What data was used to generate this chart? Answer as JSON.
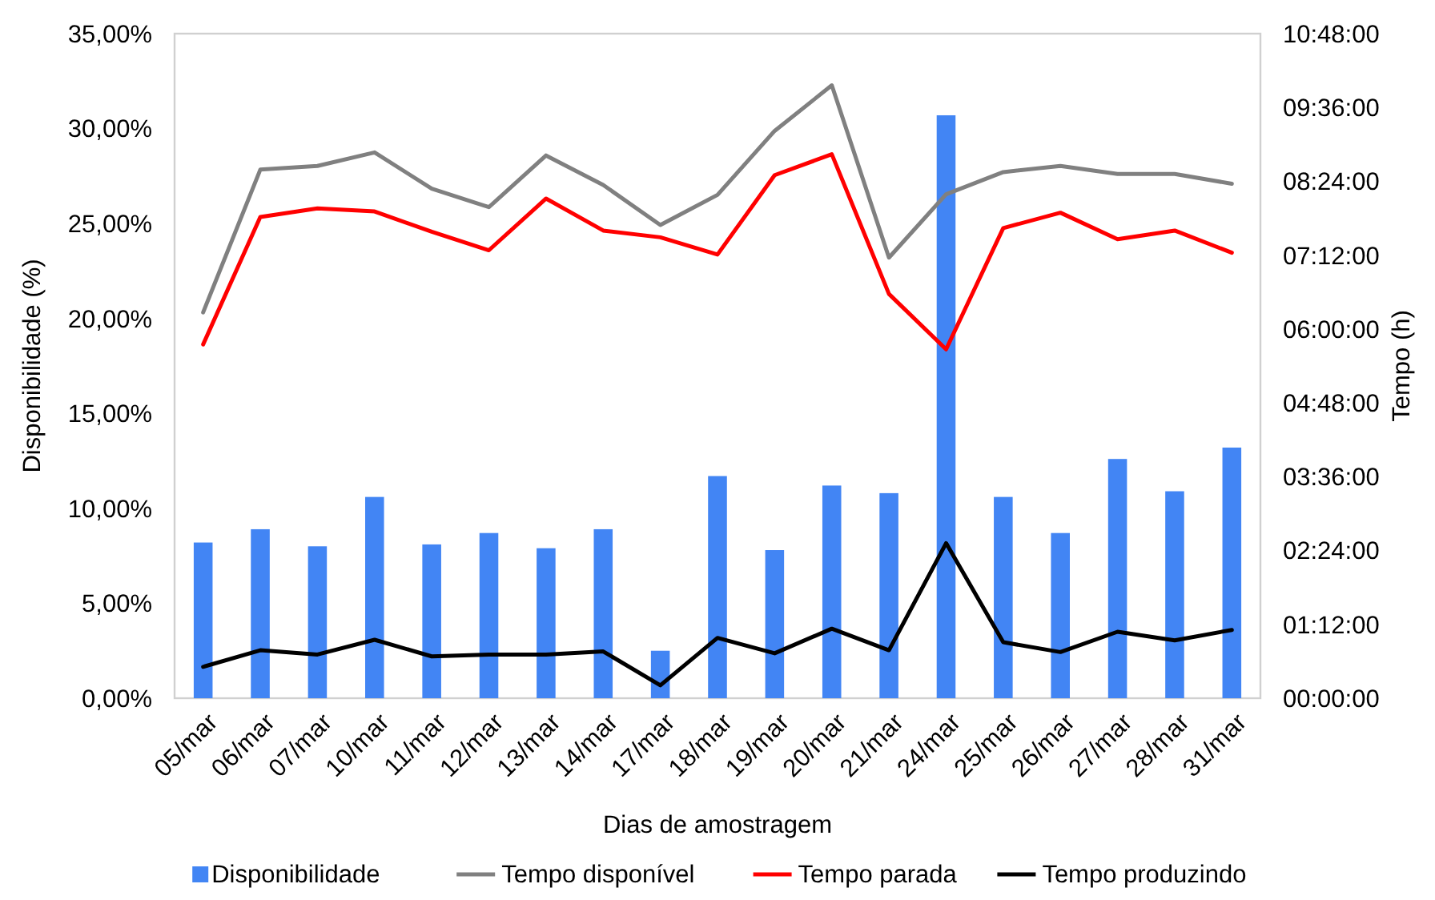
{
  "chart_data": {
    "type": "bar",
    "xlabel": "Dias de amostragem",
    "ylabel": "Disponibilidade (%)",
    "y2label": "Tempo (h)",
    "categories": [
      "05/mar",
      "06/mar",
      "07/mar",
      "10/mar",
      "11/mar",
      "12/mar",
      "13/mar",
      "14/mar",
      "17/mar",
      "18/mar",
      "19/mar",
      "20/mar",
      "21/mar",
      "24/mar",
      "25/mar",
      "26/mar",
      "27/mar",
      "28/mar",
      "31/mar"
    ],
    "series": [
      {
        "name": "Disponibilidade",
        "color": "#4285f4",
        "values": [
          8.2,
          8.9,
          8.0,
          10.6,
          8.1,
          8.7,
          7.9,
          8.9,
          2.5,
          11.7,
          7.8,
          11.2,
          10.8,
          30.7,
          10.6,
          8.7,
          12.6,
          10.9,
          13.2
        ]
      },
      {
        "name": "Tempo disponível",
        "type": "line",
        "axis": "y2",
        "color": "#808080",
        "values": [
          6.27,
          8.59,
          8.65,
          8.87,
          8.28,
          7.98,
          8.82,
          8.34,
          7.69,
          8.18,
          9.22,
          9.96,
          7.16,
          8.19,
          8.55,
          8.65,
          8.52,
          8.52,
          8.36
        ]
      },
      {
        "name": "Tempo parada",
        "type": "line",
        "axis": "y2",
        "color": "#ff0000",
        "values": [
          5.75,
          7.82,
          7.96,
          7.91,
          7.58,
          7.28,
          8.12,
          7.6,
          7.49,
          7.21,
          8.5,
          8.84,
          6.57,
          5.67,
          7.64,
          7.89,
          7.46,
          7.6,
          7.24
        ]
      },
      {
        "name": "Tempo produzindo",
        "type": "line",
        "axis": "y2",
        "color": "#000000",
        "values": [
          0.51,
          0.78,
          0.71,
          0.95,
          0.68,
          0.71,
          0.71,
          0.76,
          0.21,
          0.98,
          0.73,
          1.13,
          0.78,
          2.52,
          0.91,
          0.75,
          1.08,
          0.94,
          1.11
        ]
      }
    ],
    "ylim": [
      0,
      35
    ],
    "yticks": [
      {
        "value": 0,
        "label": "0,00%"
      },
      {
        "value": 5,
        "label": "5,00%"
      },
      {
        "value": 10,
        "label": "10,00%"
      },
      {
        "value": 15,
        "label": "15,00%"
      },
      {
        "value": 20,
        "label": "20,00%"
      },
      {
        "value": 25,
        "label": "25,00%"
      },
      {
        "value": 30,
        "label": "30,00%"
      },
      {
        "value": 35,
        "label": "35,00%"
      }
    ],
    "y2lim": [
      0,
      10.8
    ],
    "y2ticks": [
      {
        "value": 0,
        "label": "00:00:00"
      },
      {
        "value": 1.2,
        "label": "01:12:00"
      },
      {
        "value": 2.4,
        "label": "02:24:00"
      },
      {
        "value": 3.6,
        "label": "03:36:00"
      },
      {
        "value": 4.8,
        "label": "04:48:00"
      },
      {
        "value": 6,
        "label": "06:00:00"
      },
      {
        "value": 7.2,
        "label": "07:12:00"
      },
      {
        "value": 8.4,
        "label": "08:24:00"
      },
      {
        "value": 9.6,
        "label": "09:36:00"
      },
      {
        "value": 10.8,
        "label": "10:48:00"
      }
    ],
    "grid": false,
    "legend": "bottom"
  }
}
